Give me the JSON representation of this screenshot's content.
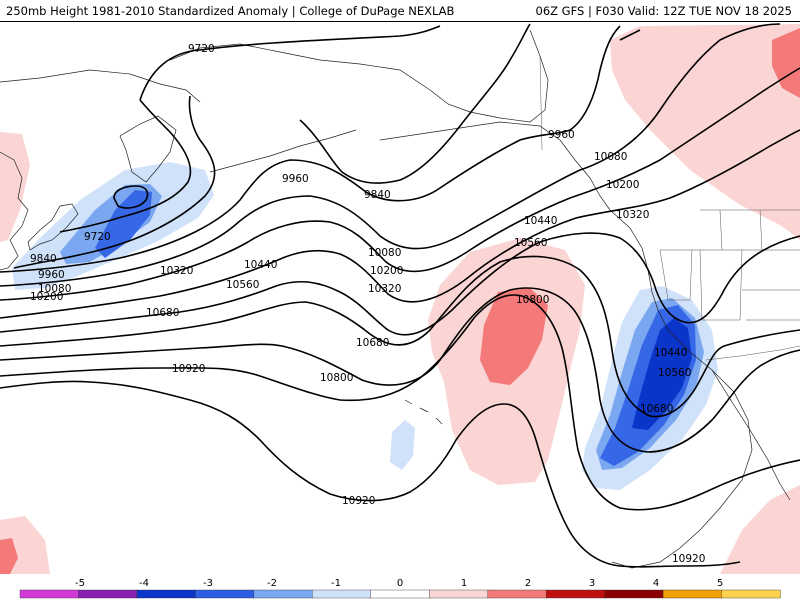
{
  "header": {
    "title": "250mb Height 1981-2010 Standardized Anomaly | College of DuPage NEXLAB",
    "run_info": "06Z GFS | F030 Valid: 12Z TUE NOV 18 2025"
  },
  "contour_labels": [
    {
      "id": "c9720a",
      "text": "9720"
    },
    {
      "id": "c9720b",
      "text": "9720"
    },
    {
      "id": "c9840a",
      "text": "9840"
    },
    {
      "id": "c9840b",
      "text": "9840"
    },
    {
      "id": "c9960a",
      "text": "9960"
    },
    {
      "id": "c9960b",
      "text": "9960"
    },
    {
      "id": "c9960c",
      "text": "9960"
    },
    {
      "id": "c10080a",
      "text": "10080"
    },
    {
      "id": "c10080b",
      "text": "10080"
    },
    {
      "id": "c10080c",
      "text": "10080"
    },
    {
      "id": "c10200a",
      "text": "10200"
    },
    {
      "id": "c10200b",
      "text": "10200"
    },
    {
      "id": "c10200c",
      "text": "10200"
    },
    {
      "id": "c10320a",
      "text": "10320"
    },
    {
      "id": "c10320b",
      "text": "10320"
    },
    {
      "id": "c10320c",
      "text": "10320"
    },
    {
      "id": "c10440a",
      "text": "10440"
    },
    {
      "id": "c10440b",
      "text": "10440"
    },
    {
      "id": "c10440c",
      "text": "10440"
    },
    {
      "id": "c10560a",
      "text": "10560"
    },
    {
      "id": "c10560b",
      "text": "10560"
    },
    {
      "id": "c10560c",
      "text": "10560"
    },
    {
      "id": "c10680a",
      "text": "10680"
    },
    {
      "id": "c10680b",
      "text": "10680"
    },
    {
      "id": "c10680c",
      "text": "10680"
    },
    {
      "id": "c10800a",
      "text": "10800"
    },
    {
      "id": "c10800b",
      "text": "10800"
    },
    {
      "id": "c10920a",
      "text": "10920"
    },
    {
      "id": "c10920b",
      "text": "10920"
    },
    {
      "id": "c10920c",
      "text": "10920"
    }
  ],
  "legend": {
    "ticks": [
      "-5",
      "-4",
      "-3",
      "-2",
      "-1",
      "0",
      "1",
      "2",
      "3",
      "4",
      "5"
    ],
    "colors": [
      "#d23ad8",
      "#8a1fb4",
      "#0b35c9",
      "#2c5fe3",
      "#7aa7f0",
      "#cfe2fa",
      "#ffffff",
      "#fbd4d4",
      "#f47a7a",
      "#c00f0f",
      "#8b0000",
      "#f0a000",
      "#ffd24d"
    ]
  },
  "colors": {
    "neg_light": "#cfe2fa",
    "neg_mid": "#7aa7f0",
    "neg_strong": "#3567e6",
    "neg_core": "#0b35c9",
    "pos_light": "#fbd4d4",
    "pos_mid": "#f47a7a",
    "contour": "#000000"
  }
}
